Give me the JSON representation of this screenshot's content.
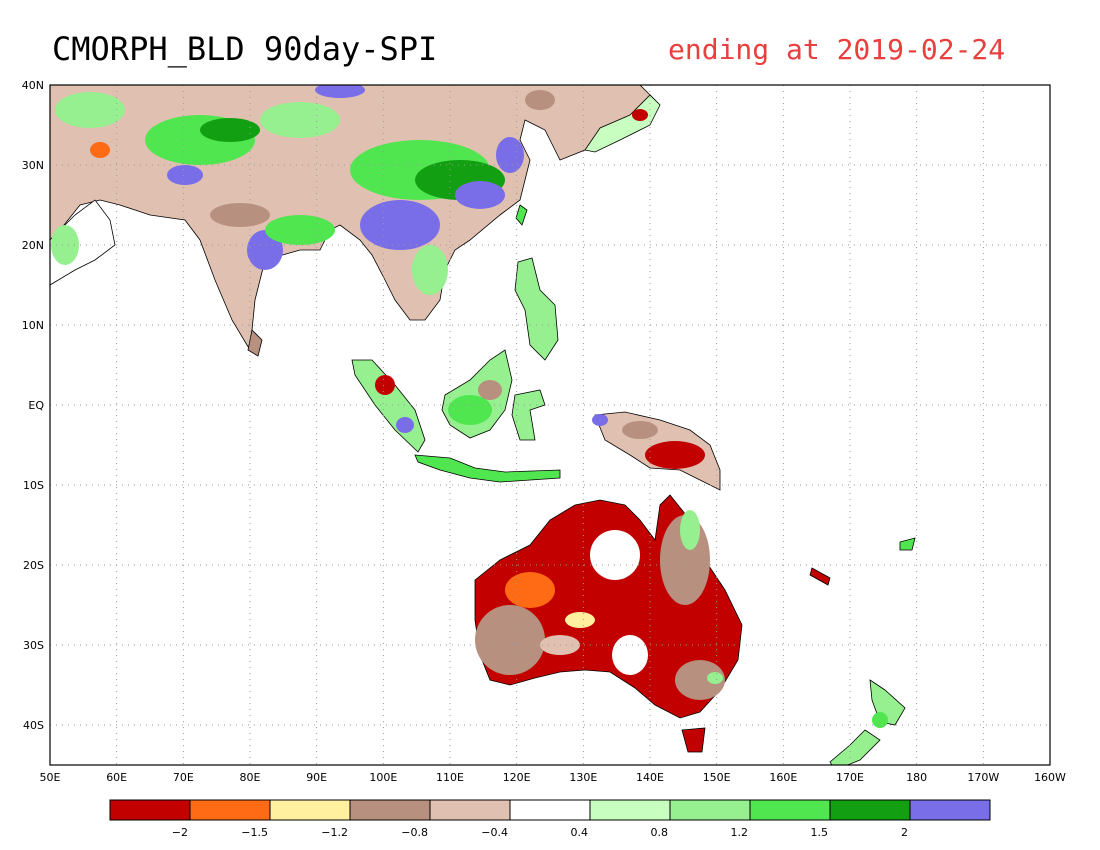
{
  "map": {
    "title": "CMORPH_BLD 90day-SPI",
    "subtitle": "ending at 2019-02-24",
    "lon_labels": [
      "50E",
      "60E",
      "70E",
      "80E",
      "90E",
      "100E",
      "110E",
      "120E",
      "130E",
      "140E",
      "150E",
      "160E",
      "170E",
      "180",
      "170W",
      "160W"
    ],
    "lat_labels": [
      "40N",
      "30N",
      "20N",
      "10N",
      "EQ",
      "10S",
      "20S",
      "30S",
      "40S"
    ],
    "colors": {
      "frame": "#000000",
      "grid": "#9a9a9a",
      "subtitle": "#e8403f"
    }
  },
  "legend": {
    "colors": [
      "#c20000",
      "#ff6a14",
      "#fff0a0",
      "#b89080",
      "#e0c0b0",
      "#ffffff",
      "#c8ffc0",
      "#96f090",
      "#50e650",
      "#12a012",
      "#7a6de8"
    ],
    "labels": [
      "−2",
      "−1.5",
      "−1.2",
      "−0.8",
      "−0.4",
      "0.4",
      "0.8",
      "1.2",
      "1.5",
      "2"
    ]
  }
}
